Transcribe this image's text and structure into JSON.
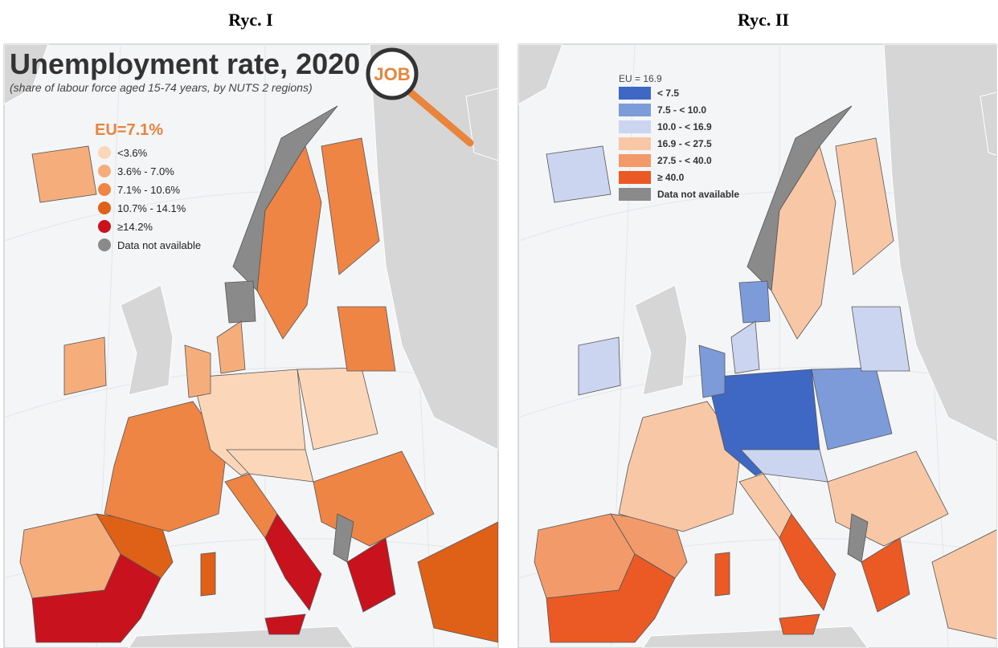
{
  "panels": [
    {
      "caption": "Ryc. I",
      "title": "Unemployment rate, 2020",
      "subtitle": "(share of labour force aged 15-74 years, by NUTS 2 regions)",
      "badge": "JOB",
      "legend": {
        "title": "EU=7.1%",
        "items": [
          {
            "label": "<3.6%",
            "color": "#fbd6b8"
          },
          {
            "label": "3.6% - 7.0%",
            "color": "#f6ad7c"
          },
          {
            "label": "7.1% - 10.6%",
            "color": "#ee8545"
          },
          {
            "label": "10.7% - 14.1%",
            "color": "#df6118"
          },
          {
            "label": "≥14.2%",
            "color": "#c8121e"
          },
          {
            "label": "Data not available",
            "color": "#8a8a8a"
          }
        ]
      }
    },
    {
      "caption": "Ryc. II",
      "legend": {
        "title": "EU = 16.9",
        "items": [
          {
            "label": "< 7.5",
            "color": "#3e68c4"
          },
          {
            "label": "7.5 - < 10.0",
            "color": "#7d9bd9"
          },
          {
            "label": "10.0 - < 16.9",
            "color": "#ccd5ef"
          },
          {
            "label": "16.9 - < 27.5",
            "color": "#f8c7a6"
          },
          {
            "label": "27.5 - < 40.0",
            "color": "#f29a6a"
          },
          {
            "label": "≥ 40.0",
            "color": "#eb5a25"
          },
          {
            "label": "Data not available",
            "color": "#8a8a8a"
          }
        ]
      }
    }
  ]
}
